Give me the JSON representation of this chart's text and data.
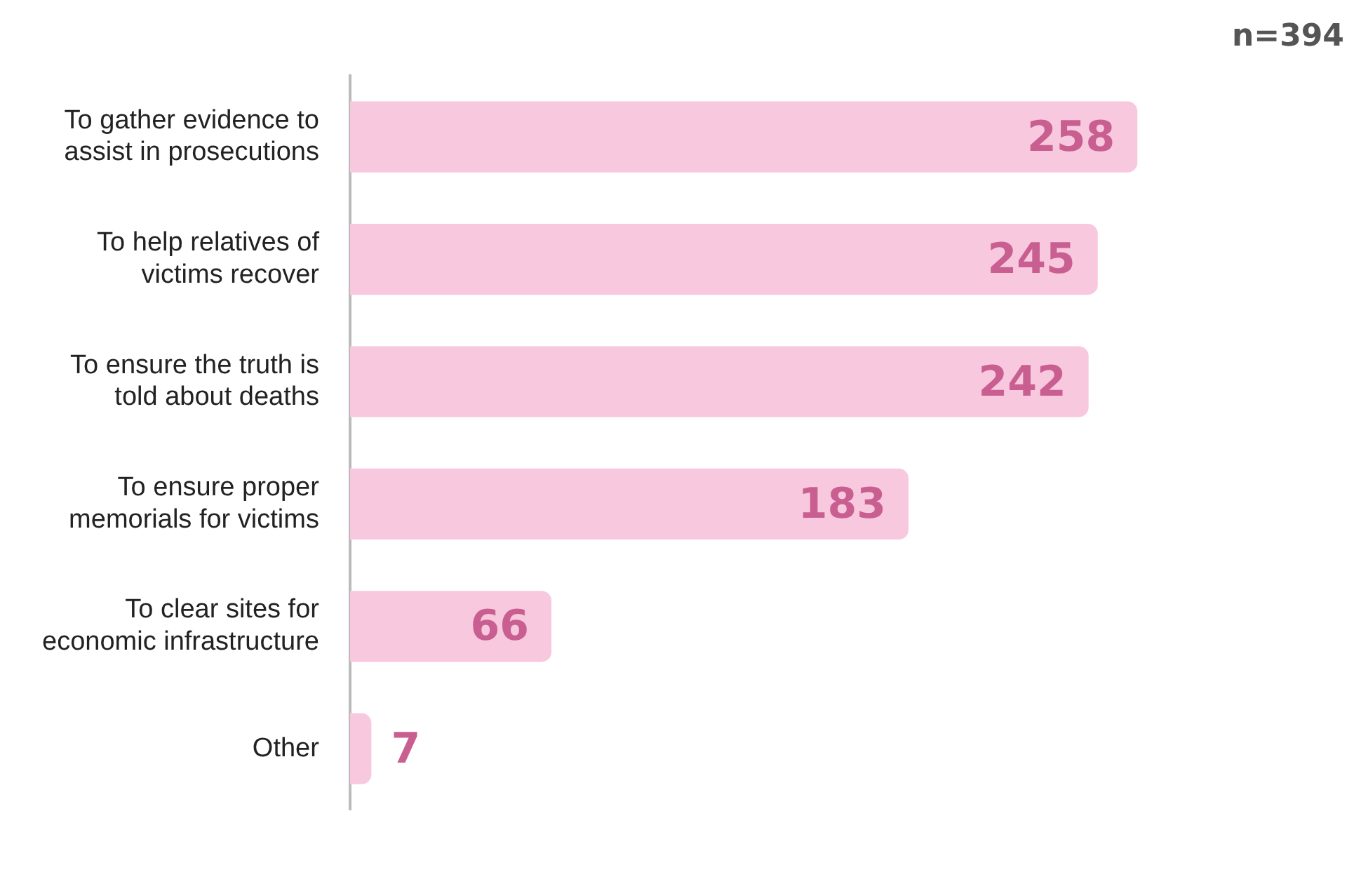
{
  "chart_data": {
    "type": "bar",
    "orientation": "horizontal",
    "categories": [
      "To gather evidence to assist in prosecutions",
      "To help relatives of victims recover",
      "To ensure the truth is told about deaths",
      "To ensure proper memorials for victims",
      "To clear sites for economic infrastructure",
      "Other"
    ],
    "values": [
      258,
      245,
      242,
      183,
      66,
      7
    ],
    "color": "#f8c9de",
    "data_labels": true,
    "legend": false,
    "annotations": [
      "n=394"
    ]
  }
}
